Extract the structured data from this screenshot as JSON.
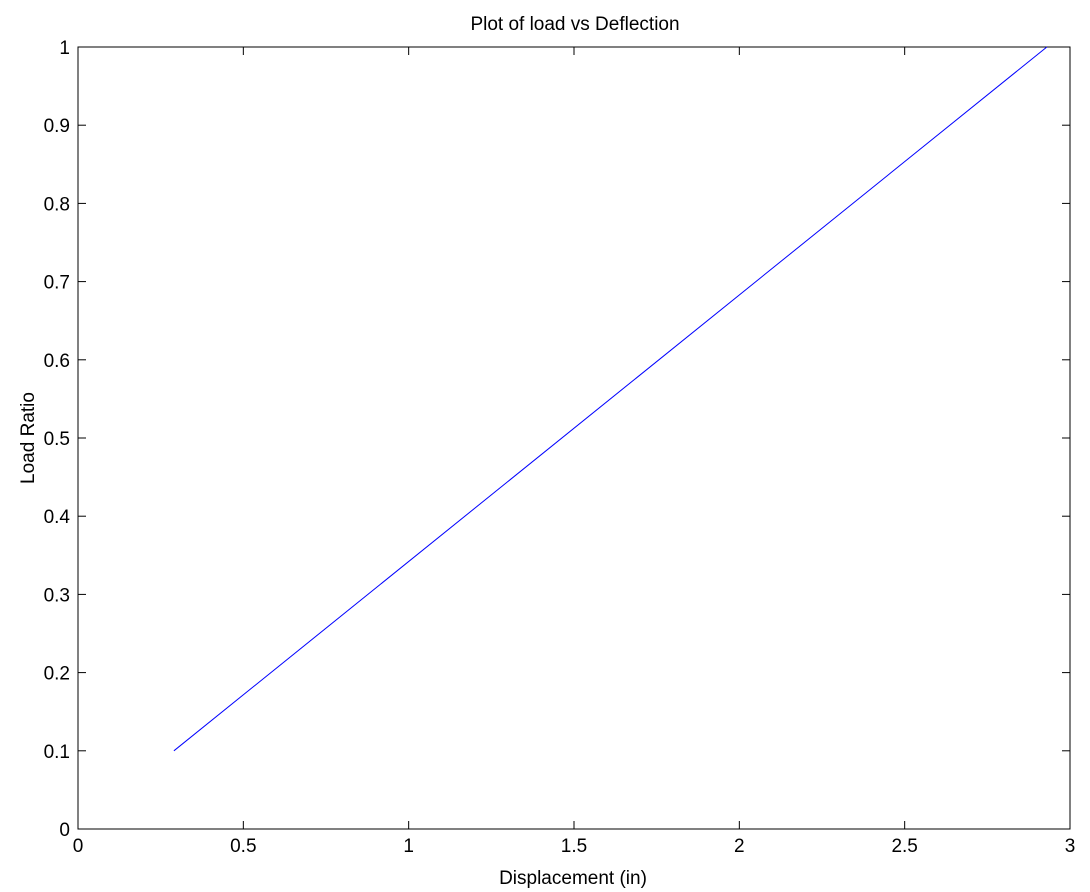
{
  "chart_data": {
    "type": "line",
    "title": "Plot of load vs Deflection",
    "xlabel": "Displacement (in)",
    "ylabel": "Load Ratio",
    "xlim": [
      0,
      3
    ],
    "ylim": [
      0,
      1
    ],
    "xticks": [
      0,
      0.5,
      1,
      1.5,
      2,
      2.5,
      3
    ],
    "xtick_labels": [
      "0",
      "0.5",
      "1",
      "1.5",
      "2",
      "2.5",
      "3"
    ],
    "yticks": [
      0,
      0.1,
      0.2,
      0.3,
      0.4,
      0.5,
      0.6,
      0.7,
      0.8,
      0.9,
      1
    ],
    "ytick_labels": [
      "0",
      "0.1",
      "0.2",
      "0.3",
      "0.4",
      "0.5",
      "0.6",
      "0.7",
      "0.8",
      "0.9",
      "1"
    ],
    "grid": false,
    "series": [
      {
        "color": "#0000ff",
        "x": [
          0.29,
          2.93
        ],
        "y": [
          0.1,
          1.0
        ]
      }
    ]
  }
}
